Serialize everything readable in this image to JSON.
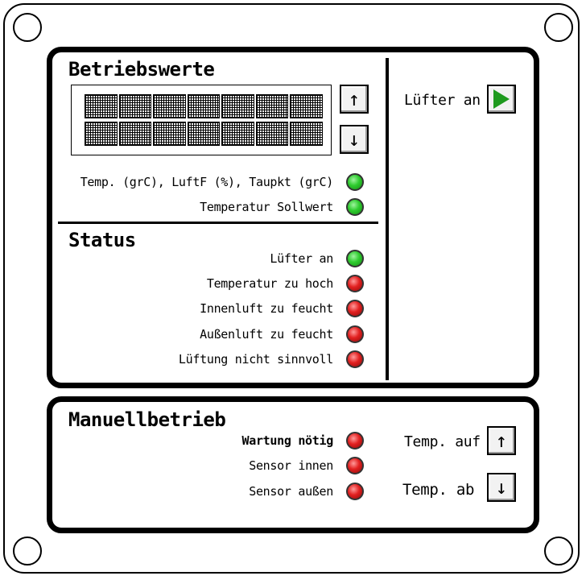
{
  "betriebswerte": {
    "title": "Betriebswerte",
    "indicators": [
      {
        "label": "Temp. (grC), LuftF (%), Taupkt (grC)",
        "state": "green"
      },
      {
        "label": "Temperatur Sollwert",
        "state": "green"
      }
    ],
    "up_icon": "arrow-up-icon",
    "down_icon": "arrow-down-icon",
    "up_symbol": "↑",
    "down_symbol": "↓"
  },
  "fan": {
    "label": "Lüfter an",
    "icon": "play-icon",
    "color": "#1e9a1e"
  },
  "status": {
    "title": "Status",
    "indicators": [
      {
        "label": "Lüfter an",
        "state": "green"
      },
      {
        "label": "Temperatur zu hoch",
        "state": "red"
      },
      {
        "label": "Innenluft zu feucht",
        "state": "red"
      },
      {
        "label": "Außenluft zu feucht",
        "state": "red"
      },
      {
        "label": "Lüftung nicht sinnvoll",
        "state": "red"
      }
    ]
  },
  "manuell": {
    "title": "Manuellbetrieb",
    "indicators": [
      {
        "label": "Wartung nötig",
        "state": "red"
      },
      {
        "label": "Sensor innen",
        "state": "red"
      },
      {
        "label": "Sensor außen",
        "state": "red"
      }
    ],
    "temp_up_label": "Temp. auf",
    "temp_down_label": "Temp. ab",
    "up_symbol": "↑",
    "down_symbol": "↓"
  },
  "colors": {
    "led_green": "#2ecc2e",
    "led_red": "#e22020"
  }
}
